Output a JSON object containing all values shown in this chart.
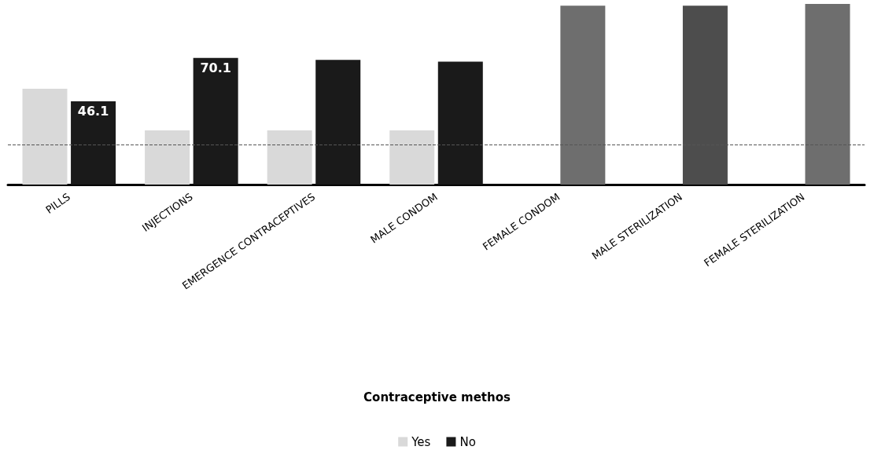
{
  "chart_data": {
    "type": "bar",
    "annotations": [
      "Contraceptive methos"
    ],
    "categories": [
      "PILLS",
      "INJECTIONS",
      "EMERGENCE CONTRACEPTIVES",
      "MALE CONDOM",
      "FEMALE CONDOM",
      "MALE STERILIZATION",
      "FEMALE STERILIZATION"
    ],
    "ylim": [
      0,
      100
    ],
    "tick_labels": "x",
    "series": [
      {
        "name": "Yes",
        "color": "#d9d9d9",
        "values": [
          53,
          30,
          30,
          30,
          null,
          null,
          null
        ]
      },
      {
        "name": "No",
        "color": "#1a1a1a",
        "colors": [
          "#1a1a1a",
          "#1a1a1a",
          "#1a1a1a",
          "#1a1a1a",
          "#6e6e6e",
          "#4d4d4d",
          "#6e6e6e"
        ],
        "values": [
          46.1,
          70.1,
          69,
          68,
          99,
          99,
          100
        ],
        "value_labels": [
          "46.1",
          "70.1",
          null,
          null,
          null,
          null,
          null
        ]
      }
    ],
    "ref_lines": [
      {
        "axis": "y",
        "value": 22,
        "color": "#555555",
        "line_style": "dashed"
      }
    ],
    "legend": "bottom"
  }
}
